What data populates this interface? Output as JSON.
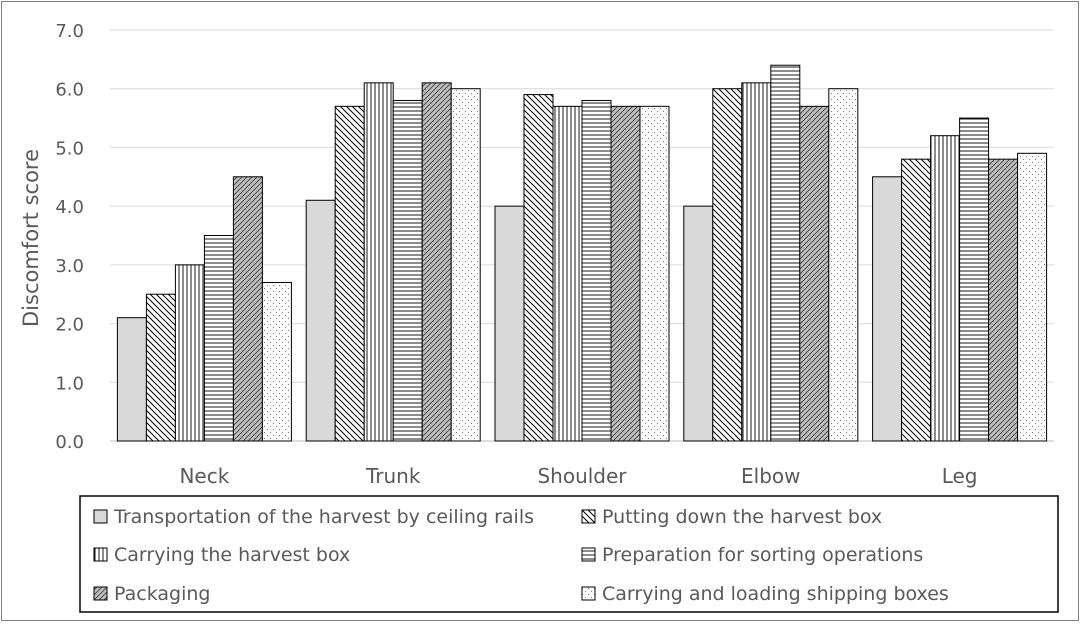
{
  "chart_data": {
    "type": "bar",
    "ylabel": "Discomfort score",
    "xlabel": "",
    "ylim": [
      0,
      7
    ],
    "y_ticks": [
      "0.0",
      "1.0",
      "2.0",
      "3.0",
      "4.0",
      "5.0",
      "6.0",
      "7.0"
    ],
    "grid": "horizontal",
    "legend_position": "bottom",
    "categories": [
      "Neck",
      "Trunk",
      "Shoulder",
      "Elbow",
      "Leg"
    ],
    "series": [
      {
        "name": "Transportation of the harvest by ceiling rails",
        "pattern": "solid-gray",
        "values": [
          2.1,
          4.1,
          4.0,
          4.0,
          4.5
        ]
      },
      {
        "name": "Putting down the harvest box",
        "pattern": "diagonal-down",
        "values": [
          2.5,
          5.7,
          5.9,
          6.0,
          4.8
        ]
      },
      {
        "name": "Carrying the harvest box",
        "pattern": "vertical",
        "values": [
          3.0,
          6.1,
          5.7,
          6.1,
          5.2
        ]
      },
      {
        "name": "Preparation for sorting operations",
        "pattern": "horizontal",
        "values": [
          3.5,
          5.8,
          5.8,
          6.4,
          5.5
        ]
      },
      {
        "name": "Packaging",
        "pattern": "diagonal-up-gray",
        "values": [
          4.5,
          6.1,
          5.7,
          5.7,
          4.8
        ]
      },
      {
        "name": "Carrying and loading shipping boxes",
        "pattern": "dots",
        "values": [
          2.7,
          6.0,
          5.7,
          6.0,
          4.9
        ]
      }
    ],
    "colors": {
      "bar_fill": "#d9d9d9",
      "bar_stroke": "#000000",
      "grid": "#d9d9d9",
      "text": "#595959"
    }
  }
}
